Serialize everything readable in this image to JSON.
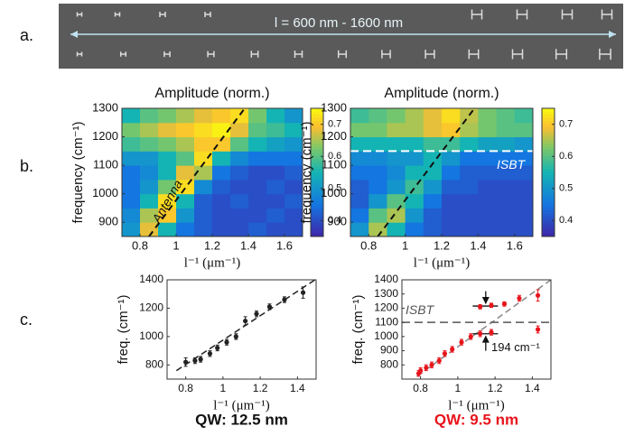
{
  "labels": {
    "a": "a.",
    "b": "b.",
    "c": "c.",
    "strip_text": "l = 600 nm  -  1600 nm"
  },
  "chart_data": [
    {
      "type": "heatmap",
      "title": "Amplitude (norm.)",
      "xlabel": "l⁻¹ (μm⁻¹)",
      "ylabel": "frequency (cm⁻¹)",
      "colormap": "parula",
      "x": [
        0.75,
        0.85,
        0.95,
        1.05,
        1.15,
        1.25,
        1.35,
        1.45,
        1.55,
        1.65
      ],
      "y": [
        875,
        925,
        975,
        1025,
        1075,
        1125,
        1175,
        1225,
        1275
      ],
      "z": [
        [
          0.5,
          0.68,
          0.55,
          0.45,
          0.42,
          0.4,
          0.4,
          0.42,
          0.4,
          0.4
        ],
        [
          0.48,
          0.65,
          0.7,
          0.5,
          0.42,
          0.4,
          0.4,
          0.4,
          0.42,
          0.4
        ],
        [
          0.45,
          0.55,
          0.72,
          0.55,
          0.42,
          0.4,
          0.42,
          0.4,
          0.4,
          0.42
        ],
        [
          0.45,
          0.5,
          0.62,
          0.72,
          0.48,
          0.42,
          0.4,
          0.4,
          0.42,
          0.4
        ],
        [
          0.45,
          0.48,
          0.55,
          0.68,
          0.65,
          0.45,
          0.42,
          0.4,
          0.4,
          0.42
        ],
        [
          0.5,
          0.5,
          0.55,
          0.6,
          0.72,
          0.55,
          0.48,
          0.45,
          0.45,
          0.45
        ],
        [
          0.58,
          0.6,
          0.62,
          0.65,
          0.7,
          0.7,
          0.6,
          0.55,
          0.52,
          0.5
        ],
        [
          0.62,
          0.65,
          0.68,
          0.7,
          0.72,
          0.74,
          0.68,
          0.6,
          0.58,
          0.55
        ],
        [
          0.55,
          0.6,
          0.62,
          0.65,
          0.68,
          0.7,
          0.72,
          0.62,
          0.55,
          0.5
        ]
      ],
      "xlim": [
        0.7,
        1.7
      ],
      "xticks": [
        0.8,
        1,
        1.2,
        1.4,
        1.6
      ],
      "ylim": [
        850,
        1300
      ],
      "yticks": [
        900,
        1000,
        1100,
        1200,
        1300
      ],
      "clim": [
        0.35,
        0.75
      ],
      "cticks": [
        0.4,
        0.5,
        0.6,
        0.7
      ],
      "guide": {
        "x": [
          0.85,
          1.38
        ],
        "y": [
          850,
          1300
        ]
      },
      "annotation": "Antenna"
    },
    {
      "type": "heatmap",
      "title": "Amplitude (norm.)",
      "xlabel": "l⁻¹ (μm⁻¹)",
      "ylabel": "frequency (cm⁻¹)",
      "colormap": "parula",
      "x": [
        0.75,
        0.85,
        0.95,
        1.05,
        1.15,
        1.25,
        1.35,
        1.45,
        1.55,
        1.65
      ],
      "y": [
        875,
        925,
        975,
        1025,
        1075,
        1125,
        1175,
        1225,
        1275
      ],
      "z": [
        [
          0.5,
          0.65,
          0.55,
          0.45,
          0.42,
          0.4,
          0.4,
          0.4,
          0.4,
          0.4
        ],
        [
          0.45,
          0.6,
          0.65,
          0.5,
          0.42,
          0.4,
          0.4,
          0.4,
          0.4,
          0.4
        ],
        [
          0.42,
          0.5,
          0.6,
          0.55,
          0.45,
          0.4,
          0.4,
          0.4,
          0.4,
          0.4
        ],
        [
          0.42,
          0.45,
          0.5,
          0.58,
          0.5,
          0.42,
          0.42,
          0.4,
          0.4,
          0.4
        ],
        [
          0.45,
          0.45,
          0.48,
          0.55,
          0.55,
          0.45,
          0.42,
          0.42,
          0.42,
          0.42
        ],
        [
          0.48,
          0.48,
          0.5,
          0.5,
          0.55,
          0.5,
          0.45,
          0.45,
          0.45,
          0.45
        ],
        [
          0.55,
          0.55,
          0.55,
          0.55,
          0.58,
          0.58,
          0.55,
          0.52,
          0.52,
          0.5
        ],
        [
          0.62,
          0.62,
          0.65,
          0.65,
          0.68,
          0.7,
          0.65,
          0.62,
          0.6,
          0.6
        ],
        [
          0.58,
          0.6,
          0.62,
          0.65,
          0.68,
          0.72,
          0.66,
          0.62,
          0.6,
          0.58
        ]
      ],
      "xlim": [
        0.7,
        1.7
      ],
      "xticks": [
        0.8,
        1,
        1.2,
        1.4,
        1.6
      ],
      "ylim": [
        850,
        1300
      ],
      "yticks": [
        900,
        1000,
        1100,
        1200,
        1300
      ],
      "clim": [
        0.35,
        0.75
      ],
      "cticks": [
        0.4,
        0.5,
        0.6,
        0.7
      ],
      "guide": {
        "x": [
          0.85,
          1.38
        ],
        "y": [
          850,
          1300
        ]
      },
      "hline": 1150,
      "annotation": "ISBT"
    },
    {
      "type": "scatter",
      "xlabel": "l⁻¹ (μm⁻¹)",
      "ylabel": "freq. (cm⁻¹)",
      "caption": "QW: 12.5 nm",
      "caption_color": "#111111",
      "series": [
        {
          "color": "#222222",
          "x": [
            0.8,
            0.85,
            0.88,
            0.93,
            0.97,
            1.02,
            1.07,
            1.12,
            1.18,
            1.25,
            1.33,
            1.43
          ],
          "values": [
            820,
            830,
            840,
            880,
            920,
            960,
            1000,
            1110,
            1160,
            1210,
            1260,
            1310
          ],
          "errors": [
            30,
            20,
            20,
            20,
            20,
            20,
            20,
            30,
            20,
            20,
            20,
            40
          ]
        }
      ],
      "fit": {
        "color": "#222222",
        "x": [
          0.75,
          1.5
        ],
        "y": [
          760,
          1405
        ]
      },
      "xlim": [
        0.7,
        1.5
      ],
      "xticks": [
        0.8,
        1,
        1.2,
        1.4
      ],
      "ylim": [
        700,
        1400
      ],
      "yticks": [
        800,
        1000,
        1200,
        1400
      ]
    },
    {
      "type": "scatter",
      "xlabel": "l⁻¹ (μm⁻¹)",
      "ylabel": "freq. (cm⁻¹)",
      "caption": "QW: 9.5 nm",
      "caption_color": "#e8141c",
      "series": [
        {
          "color": "#e8141c",
          "x": [
            0.79,
            0.8,
            0.83,
            0.86,
            0.9,
            0.93,
            0.97,
            1.02,
            1.07,
            1.12,
            1.18,
            1.43
          ],
          "values": [
            740,
            760,
            780,
            800,
            830,
            880,
            910,
            960,
            1000,
            1020,
            1030,
            1050
          ],
          "errors": [
            20,
            20,
            20,
            20,
            20,
            20,
            20,
            20,
            20,
            20,
            20,
            25
          ]
        },
        {
          "color": "#e8141c",
          "x": [
            1.12,
            1.18,
            1.25,
            1.33,
            1.43
          ],
          "values": [
            1210,
            1220,
            1230,
            1270,
            1290
          ],
          "errors": [
            15,
            15,
            15,
            20,
            40
          ]
        }
      ],
      "fit": {
        "color": "#888888",
        "x": [
          0.78,
          1.5
        ],
        "y": [
          720,
          1400
        ]
      },
      "hline": 1100,
      "hline_label": "ISBT",
      "annotation": "194 cm⁻¹",
      "xlim": [
        0.7,
        1.5
      ],
      "xticks": [
        0.8,
        1,
        1.2,
        1.4
      ],
      "ylim": [
        700,
        1400
      ],
      "yticks": [
        800,
        900,
        1000,
        1100,
        1200,
        1300,
        1400
      ]
    }
  ]
}
